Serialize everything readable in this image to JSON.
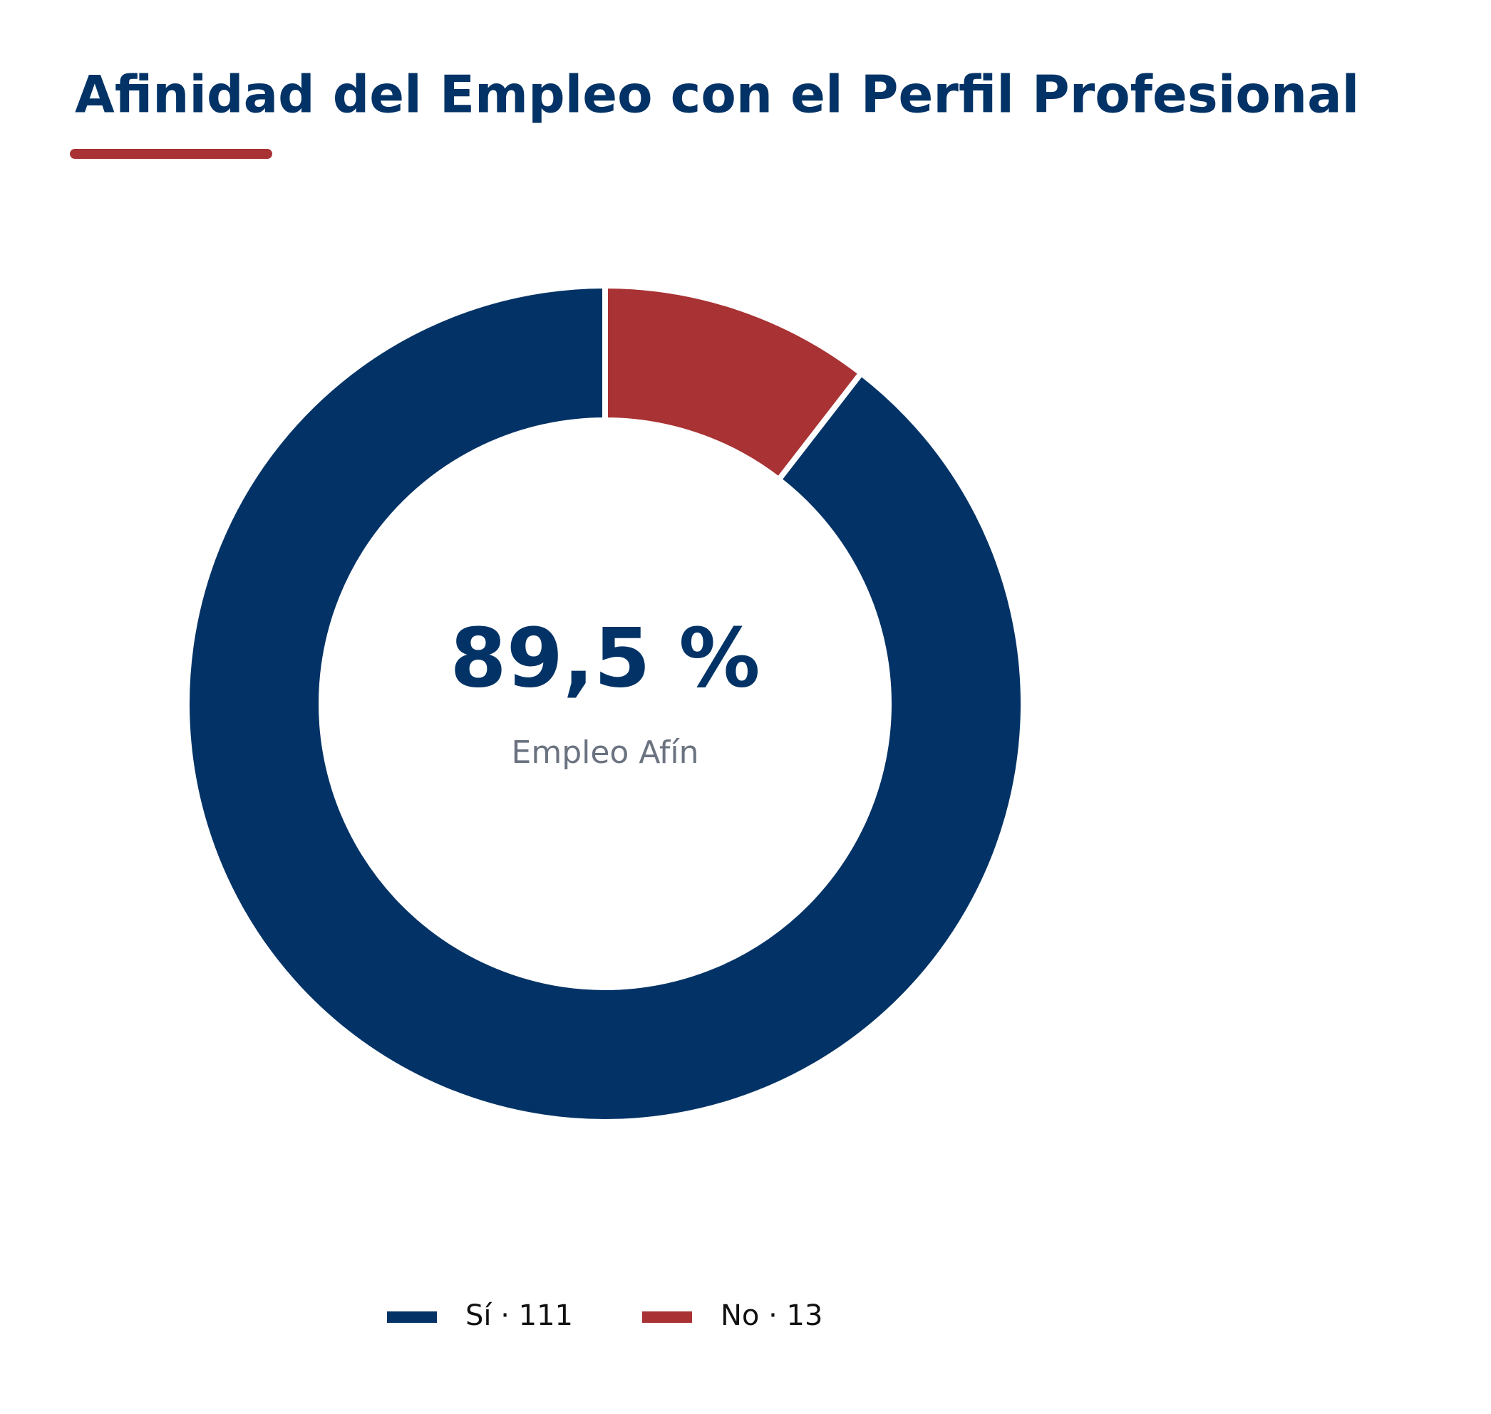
{
  "chart_data": {
    "type": "pie",
    "title": "Afinidad del Empleo con el Perfil Profesional",
    "categories": [
      "Sí",
      "No"
    ],
    "values": [
      111,
      13
    ],
    "colors": [
      "#033366",
      "#a93234"
    ],
    "labels": [
      "Sí · 111",
      "No · 13"
    ],
    "center_label": "89,5 %",
    "center_sublabel": "Empleo Afín"
  }
}
